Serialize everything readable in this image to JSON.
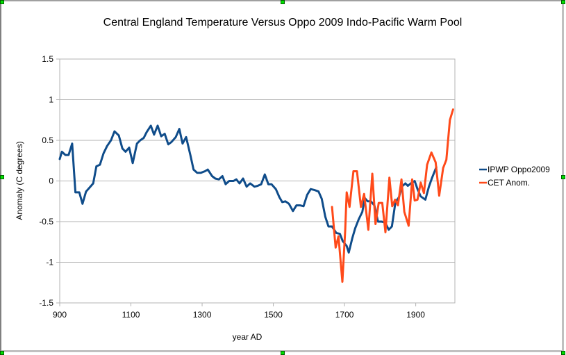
{
  "chart_data": {
    "type": "line",
    "title": "Central England Temperature Versus Oppo 2009 Indo-Pacific Warm Pool",
    "xlabel": "year AD",
    "ylabel": "Anomaly (C degrees)",
    "xlim": [
      900,
      2010
    ],
    "ylim": [
      -1.5,
      1.5
    ],
    "xticks": [
      900,
      1100,
      1300,
      1500,
      1700,
      1900
    ],
    "yticks": [
      1.5,
      1,
      0.5,
      0,
      -0.5,
      -1,
      -1.5
    ],
    "ytick_labels": [
      "1.5",
      "1",
      "0.5",
      "0",
      "-0.5",
      "-1",
      "-1.5"
    ],
    "grid": "horizontal",
    "legend_position": "right",
    "series": [
      {
        "name": "IPWP Oppo2009",
        "color": "#0f4c8a",
        "points": [
          [
            900,
            0.27
          ],
          [
            906,
            0.36
          ],
          [
            916,
            0.32
          ],
          [
            925,
            0.32
          ],
          [
            935,
            0.46
          ],
          [
            944,
            -0.14
          ],
          [
            955,
            -0.14
          ],
          [
            964,
            -0.28
          ],
          [
            974,
            -0.13
          ],
          [
            984,
            -0.08
          ],
          [
            994,
            -0.03
          ],
          [
            1003,
            0.18
          ],
          [
            1013,
            0.2
          ],
          [
            1023,
            0.34
          ],
          [
            1033,
            0.43
          ],
          [
            1044,
            0.5
          ],
          [
            1054,
            0.61
          ],
          [
            1066,
            0.56
          ],
          [
            1076,
            0.4
          ],
          [
            1085,
            0.36
          ],
          [
            1095,
            0.41
          ],
          [
            1105,
            0.22
          ],
          [
            1117,
            0.46
          ],
          [
            1126,
            0.5
          ],
          [
            1136,
            0.53
          ],
          [
            1144,
            0.6
          ],
          [
            1156,
            0.68
          ],
          [
            1165,
            0.57
          ],
          [
            1175,
            0.68
          ],
          [
            1185,
            0.55
          ],
          [
            1195,
            0.58
          ],
          [
            1205,
            0.45
          ],
          [
            1214,
            0.48
          ],
          [
            1226,
            0.54
          ],
          [
            1236,
            0.64
          ],
          [
            1245,
            0.46
          ],
          [
            1255,
            0.54
          ],
          [
            1267,
            0.32
          ],
          [
            1276,
            0.14
          ],
          [
            1286,
            0.1
          ],
          [
            1296,
            0.1
          ],
          [
            1308,
            0.12
          ],
          [
            1316,
            0.14
          ],
          [
            1328,
            0.06
          ],
          [
            1337,
            0.03
          ],
          [
            1347,
            0.02
          ],
          [
            1357,
            0.06
          ],
          [
            1366,
            -0.04
          ],
          [
            1376,
            0.0
          ],
          [
            1388,
            0.0
          ],
          [
            1396,
            0.02
          ],
          [
            1405,
            -0.03
          ],
          [
            1415,
            0.03
          ],
          [
            1425,
            -0.07
          ],
          [
            1435,
            -0.03
          ],
          [
            1447,
            -0.07
          ],
          [
            1456,
            -0.06
          ],
          [
            1466,
            -0.04
          ],
          [
            1476,
            0.08
          ],
          [
            1486,
            -0.04
          ],
          [
            1495,
            -0.04
          ],
          [
            1507,
            -0.1
          ],
          [
            1517,
            -0.2
          ],
          [
            1525,
            -0.26
          ],
          [
            1534,
            -0.25
          ],
          [
            1544,
            -0.28
          ],
          [
            1555,
            -0.37
          ],
          [
            1565,
            -0.3
          ],
          [
            1575,
            -0.3
          ],
          [
            1585,
            -0.31
          ],
          [
            1595,
            -0.17
          ],
          [
            1605,
            -0.1
          ],
          [
            1615,
            -0.11
          ],
          [
            1627,
            -0.13
          ],
          [
            1636,
            -0.22
          ],
          [
            1646,
            -0.44
          ],
          [
            1655,
            -0.56
          ],
          [
            1665,
            -0.56
          ],
          [
            1677,
            -0.64
          ],
          [
            1687,
            -0.65
          ],
          [
            1695,
            -0.74
          ],
          [
            1706,
            -0.8
          ],
          [
            1712,
            -0.88
          ],
          [
            1722,
            -0.7
          ],
          [
            1730,
            -0.58
          ],
          [
            1740,
            -0.47
          ],
          [
            1750,
            -0.38
          ],
          [
            1757,
            -0.21
          ],
          [
            1765,
            -0.25
          ],
          [
            1774,
            -0.25
          ],
          [
            1784,
            -0.3
          ],
          [
            1794,
            -0.5
          ],
          [
            1804,
            -0.5
          ],
          [
            1814,
            -0.51
          ],
          [
            1824,
            -0.6
          ],
          [
            1833,
            -0.56
          ],
          [
            1843,
            -0.26
          ],
          [
            1853,
            -0.2
          ],
          [
            1861,
            -0.07
          ],
          [
            1871,
            -0.03
          ],
          [
            1878,
            -0.06
          ],
          [
            1886,
            -0.03
          ],
          [
            1897,
            0.0
          ],
          [
            1905,
            -0.1
          ],
          [
            1914,
            -0.19
          ],
          [
            1927,
            -0.23
          ],
          [
            1937,
            -0.07
          ],
          [
            1946,
            0.04
          ],
          [
            1958,
            0.17
          ]
        ]
      },
      {
        "name": "CET Anom.",
        "color": "#ff4a1a",
        "points": [
          [
            1665,
            -0.32
          ],
          [
            1675,
            -0.82
          ],
          [
            1683,
            -0.68
          ],
          [
            1694,
            -1.24
          ],
          [
            1702,
            -0.6
          ],
          [
            1706,
            -0.14
          ],
          [
            1714,
            -0.32
          ],
          [
            1725,
            0.12
          ],
          [
            1735,
            0.12
          ],
          [
            1746,
            -0.32
          ],
          [
            1755,
            -0.16
          ],
          [
            1767,
            -0.6
          ],
          [
            1778,
            0.09
          ],
          [
            1787,
            -0.53
          ],
          [
            1796,
            -0.27
          ],
          [
            1806,
            -0.27
          ],
          [
            1815,
            -0.63
          ],
          [
            1826,
            0.04
          ],
          [
            1834,
            -0.31
          ],
          [
            1842,
            -0.23
          ],
          [
            1850,
            -0.3
          ],
          [
            1860,
            0.02
          ],
          [
            1868,
            -0.38
          ],
          [
            1880,
            -0.55
          ],
          [
            1890,
            0.02
          ],
          [
            1897,
            -0.24
          ],
          [
            1905,
            -0.23
          ],
          [
            1914,
            -0.02
          ],
          [
            1923,
            -0.15
          ],
          [
            1932,
            0.2
          ],
          [
            1944,
            0.35
          ],
          [
            1956,
            0.23
          ],
          [
            1966,
            -0.18
          ],
          [
            1977,
            0.16
          ],
          [
            1986,
            0.26
          ],
          [
            1996,
            0.75
          ],
          [
            2005,
            0.88
          ]
        ]
      }
    ]
  }
}
